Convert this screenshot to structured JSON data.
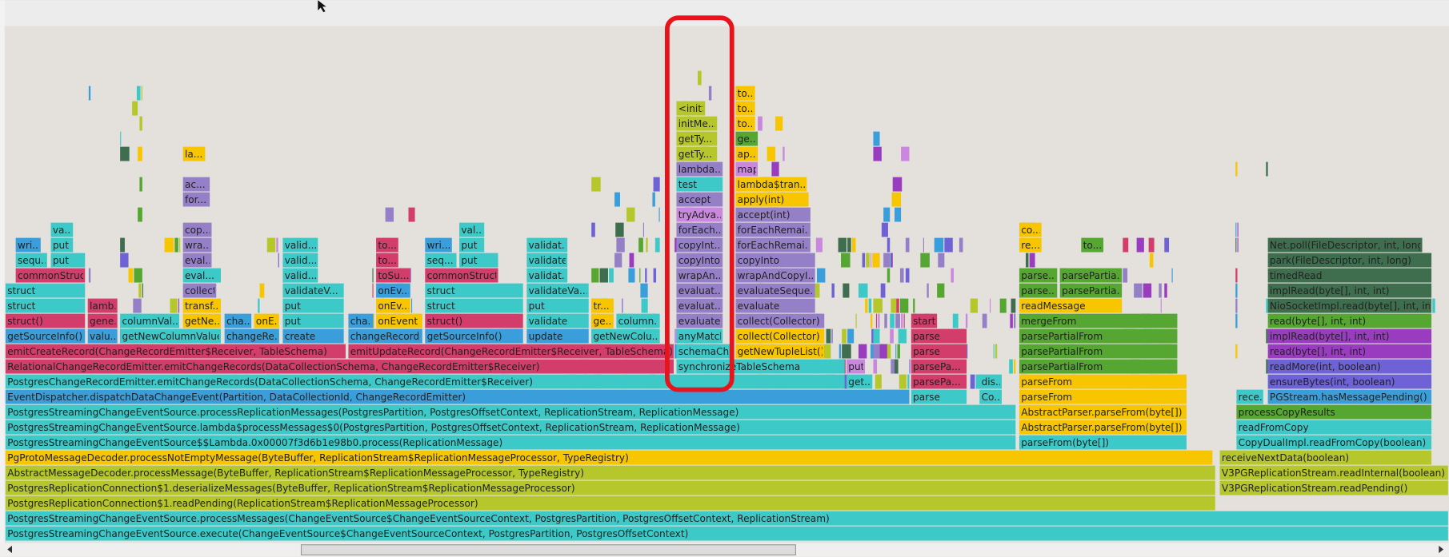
{
  "frames": [
    "PostgresStreamingChangeEventSource.execute(ChangeEventSource$ChangeEventSourceContext, PostgresPartition, PostgresOffsetContext)",
    "PostgresStreamingChangeEventSource.processMessages(ChangeEventSource$ChangeEventSourceContext, PostgresPartition, PostgresOffsetContext, ReplicationStream)",
    "PostgresReplicationConnection$1.readPending(ReplicationStream$ReplicationMessageProcessor)",
    "PostgresReplicationConnection$1.deserializeMessages(ByteBuffer, ReplicationStream$ReplicationMessageProcessor)",
    "V3PGReplicationStream.readPending()",
    "AbstractMessageDecoder.processMessage(ByteBuffer, ReplicationStream$ReplicationMessageProcessor, TypeRegistry)",
    "V3PGReplicationStream.readInternal(boolean)",
    "PgProtoMessageDecoder.processNotEmptyMessage(ByteBuffer, ReplicationStream$ReplicationMessageProcessor, TypeRegistry)",
    "receiveNextData(boolean)",
    "PostgresStreamingChangeEventSource$$Lambda.0x00007f3d6b1e98b0.process(ReplicationMessage)",
    "parseFrom(byte[])",
    "CopyDualImpl.readFromCopy(boolean)",
    "PostgresStreamingChangeEventSource.lambda$processMessages$0(PostgresPartition, PostgresOffsetContext, ReplicationStream, ReplicationMessage)",
    "AbstractParser.parseFrom(byte[])",
    "readFromCopy",
    "PostgresStreamingChangeEventSource.processReplicationMessages(PostgresPartition, PostgresOffsetContext, ReplicationStream, ReplicationMessage)",
    "AbstractParser.parseFrom(byte[])",
    "processCopyResults",
    "EventDispatcher.dispatchDataChangeEvent(Partition, DataCollectionId, ChangeRecordEmitter)",
    "parse",
    "Co...",
    "parseFrom",
    "rece...",
    "PGStream.hasMessagePending()",
    "PostgresChangeRecordEmitter.emitChangeRecords(DataCollectionSchema, ChangeRecordEmitter$Receiver)",
    "get...",
    "parsePa...",
    "dis...",
    "parseFrom",
    "ensureBytes(int, boolean)",
    "RelationalChangeRecordEmitter.emitChangeRecords(DataCollectionSchema, ChangeRecordEmitter$Receiver)",
    "synchronizeTableSchema",
    "put",
    "parsePa...",
    "parsePartialFrom",
    "readMore(int, boolean)",
    "emitCreateRecord(ChangeRecordEmitter$Receiver, TableSchema)",
    "emitUpdateRecord(ChangeRecordEmitter$Receiver, TableSchema)",
    "schemaChanged",
    "getNewTupleList()",
    "parse",
    "parsePartialFrom",
    "read(byte[], int, int)",
    "getSourceInfo()",
    "valu...",
    "getNewColumnValues",
    "changeRe...",
    "create",
    "changeRecord",
    "getSourceInfo()",
    "update",
    "getNewColu...",
    "anyMatch",
    "collect(Collector)",
    "parse",
    "parsePartialFrom",
    "implRead(byte[], int, int)",
    "struct()",
    "gene...",
    "columnVal...",
    "getNe...",
    "cha...",
    "onE...",
    "put",
    "cha...",
    "onEvent",
    "struct()",
    "validate",
    "ge...",
    "column...",
    "evaluate",
    "collect(Collector)",
    "start",
    "mergeFrom",
    "read(byte[], int, int)",
    "struct",
    "lamb...",
    "transf...",
    "put",
    "onEv...",
    "struct",
    "put",
    "tr...",
    "evaluat...",
    "evaluate",
    "readMessage",
    "NioSocketImpl.read(byte[], int, int)",
    "struct",
    "collect",
    "validateV...",
    "onEv...",
    "struct",
    "validateVa...",
    "evaluat...",
    "evaluateSeque...",
    "parse...",
    "parsePartia...",
    "implRead(byte[], int, int)",
    "commonStruct",
    "eval...",
    "valid...",
    "toSu...",
    "commonStruct",
    "validat...",
    "wrapAn...",
    "wrapAndCopyI...",
    "parse...",
    "parsePartia...",
    "timedRead",
    "sequ...",
    "put",
    "eval...",
    "valid...",
    "to...",
    "seq...",
    "put",
    "validate",
    "copyInto",
    "copyInto",
    "park(FileDescriptor, int, long)",
    "wri...",
    "put",
    "wra...",
    "valid...",
    "to...",
    "wri...",
    "put",
    "validat...",
    "copyInt...",
    "forEachRemai...",
    "re...",
    "to...",
    "Net.poll(FileDescriptor, int, long)",
    "va...",
    "cop...",
    "val...",
    "forEach...",
    "forEachRemai...",
    "co...",
    "tryAdva...",
    "accept(int)",
    "for...",
    "accept",
    "apply(int)",
    "ac...",
    "test",
    "lambda$tran...",
    "lambda...",
    "map",
    "la...",
    "getTy...",
    "ap...",
    "getTy...",
    "ge...",
    "initMe...",
    "to...",
    "<init>",
    "to...",
    "to..."
  ]
}
